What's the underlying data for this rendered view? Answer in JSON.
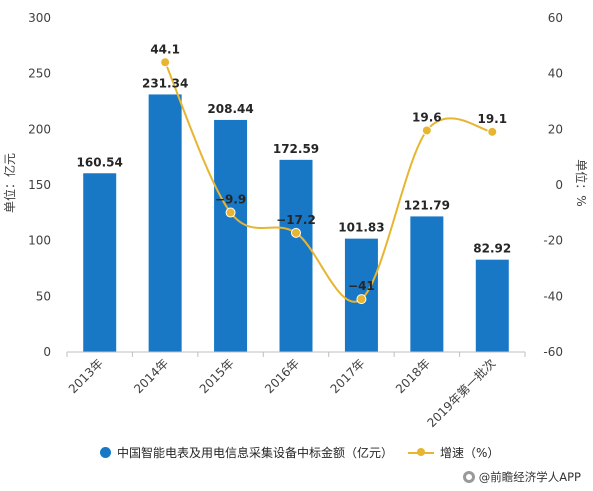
{
  "chart_data": {
    "type": "bar",
    "categories": [
      "2013年",
      "2014年",
      "2015年",
      "2016年",
      "2017年",
      "2018年",
      "2019年第一批次"
    ],
    "series": [
      {
        "name": "中国智能电表及用电信息采集设备中标金额（亿元）",
        "type": "bar",
        "axis": "left",
        "values": [
          160.54,
          231.34,
          208.44,
          172.59,
          101.83,
          121.79,
          82.92
        ],
        "labels": [
          "160.54",
          "231.34",
          "208.44",
          "172.59",
          "101.83",
          "121.79",
          "82.92"
        ],
        "color": "#1878c6"
      },
      {
        "name": "增速（%）",
        "type": "line",
        "axis": "right",
        "smooth": true,
        "values": [
          null,
          44.1,
          -9.9,
          -17.2,
          -41,
          19.6,
          19.1
        ],
        "labels": [
          "",
          "44.1",
          "−9.9",
          "−17.2",
          "−41",
          "19.6",
          "19.1"
        ],
        "color": "#e8b530"
      }
    ],
    "ylabel": "单位：亿元",
    "y2label": "单位：%",
    "ylim": [
      0,
      300
    ],
    "y2lim": [
      -60,
      60
    ],
    "yticks": [
      "0",
      "50",
      "100",
      "150",
      "200",
      "250",
      "300"
    ],
    "y2ticks": [
      "-60",
      "-40",
      "-20",
      "0",
      "20",
      "40",
      "60"
    ],
    "grid": false,
    "legend_position": "bottom"
  },
  "legend": {
    "bar_label": "中国智能电表及用电信息采集设备中标金额（亿元）",
    "line_label": "增速（%）"
  },
  "brand": {
    "text": "@前瞻经济学人APP"
  }
}
